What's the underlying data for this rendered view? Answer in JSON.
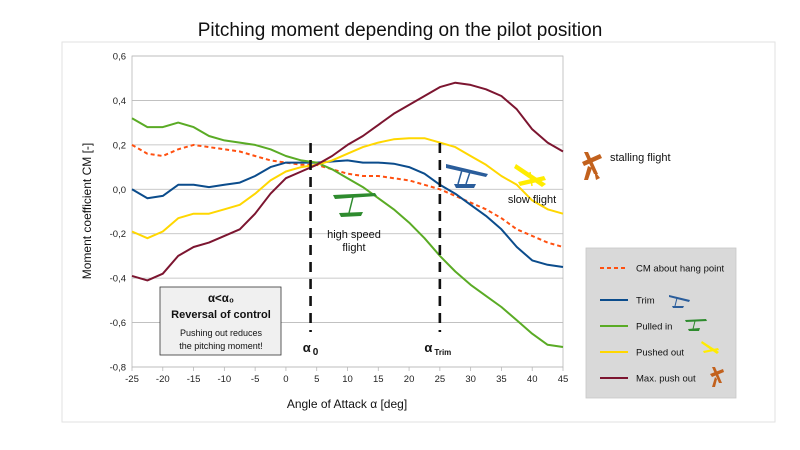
{
  "chart_data": {
    "type": "line",
    "title": "Pitching moment depending on the pilot position",
    "xlabel": "Angle of Attack α [deg]",
    "ylabel": "Moment coefficient CM [-]",
    "xlim": [
      -25,
      45
    ],
    "ylim": [
      -0.8,
      0.6
    ],
    "x_ticks": [
      "-25",
      "-20",
      "-15",
      "-10",
      "-5",
      "0",
      "5",
      "10",
      "15",
      "20",
      "25",
      "30",
      "35",
      "40",
      "45"
    ],
    "y_ticks": [
      "0,6",
      "0,4",
      "0,2",
      "0,0",
      "-0,2",
      "-0,4",
      "-0,6",
      "-0,8"
    ],
    "grid": true,
    "legend_position": "right",
    "x": [
      -25,
      -22.5,
      -20,
      -17.5,
      -15,
      -12.5,
      -10,
      -7.5,
      -5,
      -2.5,
      0,
      2.5,
      5,
      7.5,
      10,
      12.5,
      15,
      17.5,
      20,
      22.5,
      25,
      27.5,
      30,
      32.5,
      35,
      37.5,
      40,
      42.5,
      45
    ],
    "series": [
      {
        "name": "CM about hang point",
        "color": "#ff5010",
        "dash": true,
        "values": [
          0.2,
          0.16,
          0.15,
          0.18,
          0.2,
          0.19,
          0.18,
          0.17,
          0.15,
          0.13,
          0.12,
          0.11,
          0.11,
          0.09,
          0.07,
          0.06,
          0.06,
          0.05,
          0.04,
          0.02,
          0.0,
          -0.03,
          -0.06,
          -0.09,
          -0.13,
          -0.18,
          -0.21,
          -0.24,
          -0.26
        ]
      },
      {
        "name": "Trim",
        "color": "#0b4c8c",
        "values": [
          0.0,
          -0.04,
          -0.03,
          0.02,
          0.02,
          0.01,
          0.02,
          0.03,
          0.06,
          0.1,
          0.12,
          0.12,
          0.12,
          0.125,
          0.13,
          0.12,
          0.12,
          0.115,
          0.1,
          0.07,
          0.02,
          -0.02,
          -0.07,
          -0.12,
          -0.18,
          -0.26,
          -0.32,
          -0.34,
          -0.35
        ]
      },
      {
        "name": "Pulled in",
        "color": "#5aab25",
        "values": [
          0.32,
          0.28,
          0.28,
          0.3,
          0.28,
          0.24,
          0.22,
          0.21,
          0.2,
          0.18,
          0.15,
          0.13,
          0.12,
          0.09,
          0.05,
          0.01,
          -0.04,
          -0.09,
          -0.15,
          -0.22,
          -0.3,
          -0.37,
          -0.43,
          -0.48,
          -0.53,
          -0.59,
          -0.65,
          -0.7,
          -0.71
        ]
      },
      {
        "name": "Pushed out",
        "color": "#ffd700",
        "values": [
          -0.19,
          -0.22,
          -0.19,
          -0.13,
          -0.11,
          -0.11,
          -0.09,
          -0.07,
          -0.02,
          0.04,
          0.08,
          0.1,
          0.11,
          0.13,
          0.16,
          0.19,
          0.21,
          0.225,
          0.23,
          0.23,
          0.21,
          0.19,
          0.15,
          0.11,
          0.06,
          0.02,
          -0.05,
          -0.09,
          -0.11
        ]
      },
      {
        "name": "Max. push out",
        "color": "#7c1530",
        "values": [
          -0.39,
          -0.41,
          -0.38,
          -0.3,
          -0.26,
          -0.24,
          -0.21,
          -0.18,
          -0.11,
          -0.02,
          0.05,
          0.08,
          0.11,
          0.15,
          0.2,
          0.24,
          0.29,
          0.34,
          0.38,
          0.42,
          0.46,
          0.48,
          0.47,
          0.45,
          0.42,
          0.36,
          0.27,
          0.21,
          0.17
        ]
      }
    ],
    "vlines": [
      {
        "x": 4,
        "label_main": "α",
        "label_sub": "0"
      },
      {
        "x": 25,
        "label_main": "α",
        "label_sub": "Trim"
      }
    ],
    "annotations": {
      "high_speed": "high speed flight",
      "slow": "slow flight",
      "stalling": "stalling flight",
      "box_heading": "α<α₀",
      "box_title": "Reversal of control",
      "box_body_line1": "Pushing out reduces",
      "box_body_line2": "the pitching moment!"
    },
    "glider_icon_colors": {
      "green": "#2e8b2e",
      "blue": "#2a5d9b",
      "yellow": "#ffec00",
      "brown": "#c2611d"
    }
  }
}
